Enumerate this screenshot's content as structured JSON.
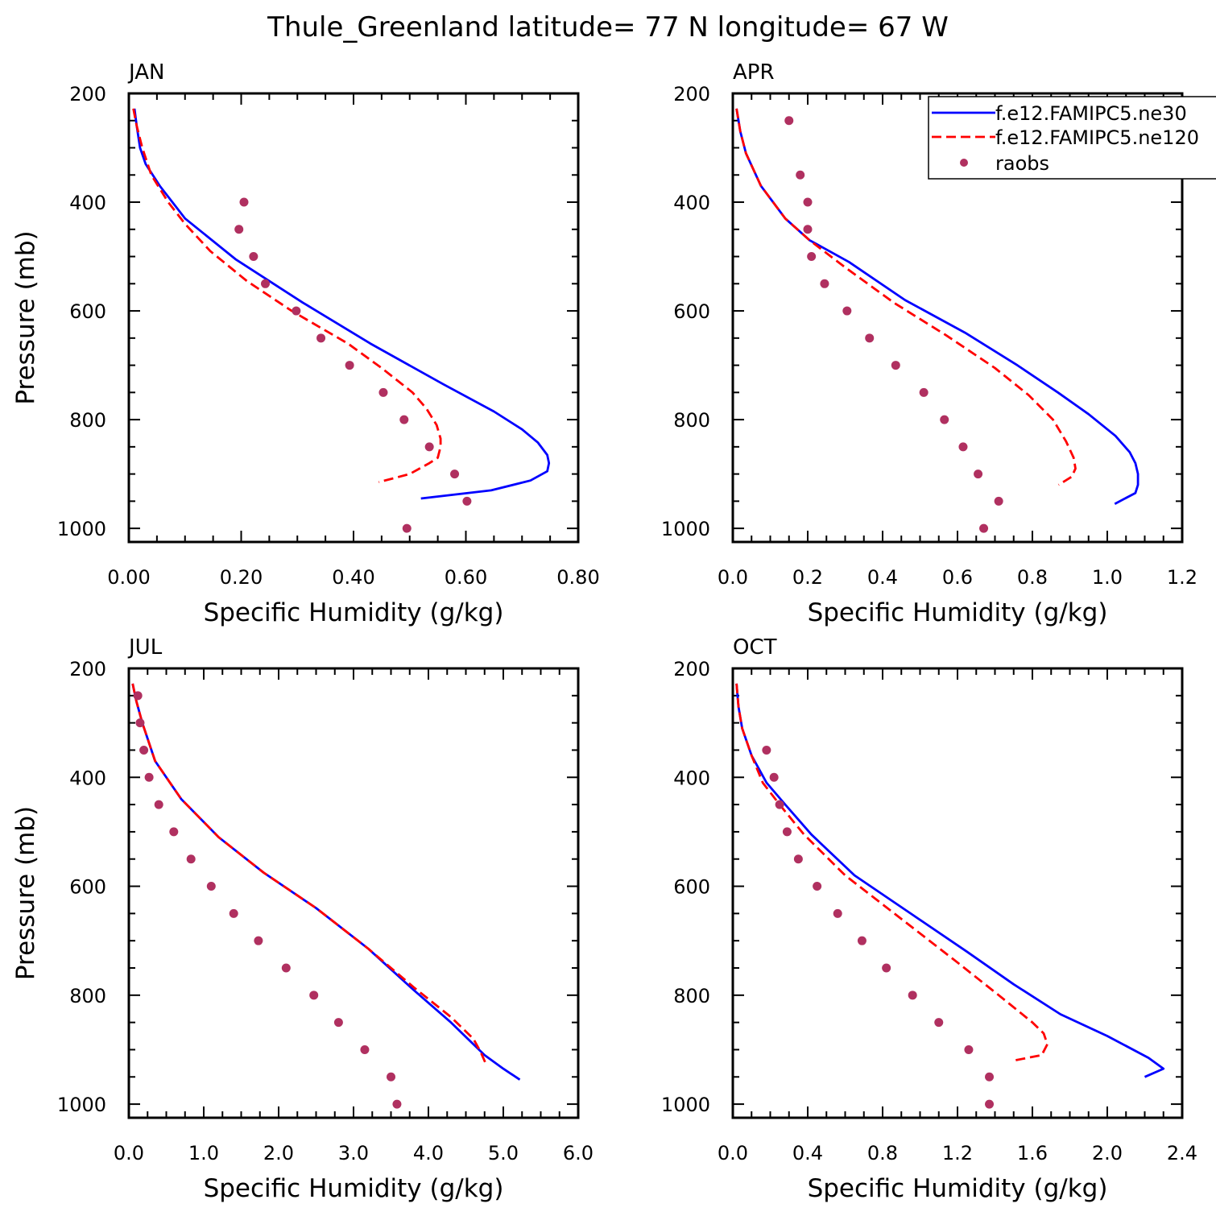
{
  "title": "Thule_Greenland  latitude= 77 N longitude= 67 W",
  "legend": [
    {
      "label": "f.e12.FAMIPC5.ne30",
      "color": "#0000ff",
      "style": "solid"
    },
    {
      "label": "f.e12.FAMIPC5.ne120",
      "color": "#ff0000",
      "style": "dashed"
    },
    {
      "label": "raobs",
      "color": "#b03060",
      "style": "marker"
    }
  ],
  "chart_data": [
    {
      "type": "line",
      "panel": "JAN",
      "xlabel": "Specific Humidity (g/kg)",
      "ylabel": "Pressure (mb)",
      "xlim": [
        0,
        0.8
      ],
      "ylim": [
        200,
        1025
      ],
      "xticks": [
        "0.00",
        "0.20",
        "0.40",
        "0.60",
        "0.80"
      ],
      "yticks": [
        "200",
        "400",
        "600",
        "800",
        "1000"
      ],
      "series": [
        {
          "name": "f.e12.FAMIPC5.ne30",
          "x": [
            0.01,
            0.014,
            0.02,
            0.03,
            0.055,
            0.1,
            0.19,
            0.31,
            0.43,
            0.56,
            0.65,
            0.7,
            0.728,
            0.745,
            0.748,
            0.745,
            0.715,
            0.645,
            0.52
          ],
          "y": [
            228,
            260,
            300,
            330,
            370,
            430,
            505,
            585,
            660,
            735,
            785,
            818,
            842,
            865,
            880,
            895,
            912,
            930,
            945
          ]
        },
        {
          "name": "f.e12.FAMIPC5.ne120",
          "x": [
            0.008,
            0.014,
            0.024,
            0.04,
            0.07,
            0.1,
            0.145,
            0.21,
            0.29,
            0.39,
            0.45,
            0.505,
            0.53,
            0.548,
            0.555,
            0.555,
            0.55,
            0.535,
            0.5,
            0.445
          ],
          "y": [
            228,
            260,
            300,
            350,
            400,
            440,
            490,
            545,
            600,
            660,
            705,
            750,
            780,
            810,
            835,
            850,
            870,
            880,
            900,
            915
          ]
        },
        {
          "name": "raobs",
          "x": [
            0.205,
            0.196,
            0.222,
            0.243,
            0.298,
            0.342,
            0.393,
            0.453,
            0.49,
            0.535,
            0.58,
            0.602,
            0.495
          ],
          "y": [
            400,
            450,
            500,
            550,
            600,
            650,
            700,
            750,
            800,
            850,
            900,
            950,
            1000
          ]
        }
      ]
    },
    {
      "type": "line",
      "panel": "APR",
      "xlabel": "Specific Humidity (g/kg)",
      "ylabel": "",
      "xlim": [
        0,
        1.2
      ],
      "ylim": [
        200,
        1025
      ],
      "xticks": [
        "0.0",
        "0.2",
        "0.4",
        "0.6",
        "0.8",
        "1.0",
        "1.2"
      ],
      "yticks": [
        "200",
        "400",
        "600",
        "800",
        "1000"
      ],
      "series": [
        {
          "name": "f.e12.FAMIPC5.ne30",
          "x": [
            0.01,
            0.02,
            0.035,
            0.075,
            0.14,
            0.205,
            0.31,
            0.46,
            0.62,
            0.76,
            0.868,
            0.95,
            1.022,
            1.06,
            1.075,
            1.082,
            1.082,
            1.075,
            1.02
          ],
          "y": [
            228,
            270,
            310,
            370,
            430,
            470,
            510,
            580,
            640,
            700,
            750,
            790,
            830,
            860,
            880,
            900,
            920,
            935,
            955
          ]
        },
        {
          "name": "f.e12.FAMIPC5.ne120",
          "x": [
            0.01,
            0.02,
            0.035,
            0.075,
            0.14,
            0.205,
            0.3,
            0.43,
            0.57,
            0.7,
            0.79,
            0.855,
            0.89,
            0.91,
            0.915,
            0.905,
            0.87
          ],
          "y": [
            228,
            270,
            310,
            370,
            430,
            470,
            520,
            585,
            645,
            705,
            755,
            800,
            840,
            870,
            890,
            905,
            920
          ]
        },
        {
          "name": "raobs",
          "x": [
            0.15,
            0.18,
            0.2,
            0.2,
            0.21,
            0.245,
            0.305,
            0.365,
            0.435,
            0.51,
            0.565,
            0.615,
            0.655,
            0.71,
            0.67
          ],
          "y": [
            250,
            350,
            400,
            450,
            500,
            550,
            600,
            650,
            700,
            750,
            800,
            850,
            900,
            950,
            1000
          ]
        }
      ]
    },
    {
      "type": "line",
      "panel": "JUL",
      "xlabel": "Specific Humidity (g/kg)",
      "ylabel": "Pressure (mb)",
      "xlim": [
        0,
        6.0
      ],
      "ylim": [
        200,
        1025
      ],
      "xticks": [
        "0.0",
        "1.0",
        "2.0",
        "3.0",
        "4.0",
        "5.0",
        "6.0"
      ],
      "yticks": [
        "200",
        "400",
        "600",
        "800",
        "1000"
      ],
      "series": [
        {
          "name": "f.e12.FAMIPC5.ne30",
          "x": [
            0.05,
            0.1,
            0.18,
            0.35,
            0.7,
            1.2,
            1.8,
            2.5,
            3.2,
            3.8,
            4.3,
            4.75,
            5.0,
            5.22
          ],
          "y": [
            228,
            260,
            300,
            370,
            440,
            510,
            575,
            640,
            715,
            790,
            850,
            910,
            935,
            955
          ]
        },
        {
          "name": "f.e12.FAMIPC5.ne120",
          "x": [
            0.05,
            0.1,
            0.18,
            0.35,
            0.7,
            1.2,
            1.8,
            2.5,
            3.2,
            3.8,
            4.3,
            4.6,
            4.7,
            4.78
          ],
          "y": [
            228,
            260,
            300,
            370,
            440,
            510,
            575,
            640,
            715,
            785,
            840,
            880,
            905,
            930
          ]
        },
        {
          "name": "raobs",
          "x": [
            0.12,
            0.15,
            0.2,
            0.27,
            0.4,
            0.6,
            0.83,
            1.1,
            1.4,
            1.73,
            2.1,
            2.47,
            2.8,
            3.15,
            3.5,
            3.58
          ],
          "y": [
            250,
            300,
            350,
            400,
            450,
            500,
            550,
            600,
            650,
            700,
            750,
            800,
            850,
            900,
            950,
            1000
          ]
        }
      ]
    },
    {
      "type": "line",
      "panel": "OCT",
      "xlabel": "Specific Humidity (g/kg)",
      "ylabel": "",
      "xlim": [
        0,
        2.4
      ],
      "ylim": [
        200,
        1025
      ],
      "xticks": [
        "0.0",
        "0.4",
        "0.8",
        "1.2",
        "1.6",
        "2.0",
        "2.4"
      ],
      "yticks": [
        "200",
        "400",
        "600",
        "800",
        "1000"
      ],
      "series": [
        {
          "name": "f.e12.FAMIPC5.ne30",
          "x": [
            0.02,
            0.03,
            0.05,
            0.1,
            0.18,
            0.28,
            0.42,
            0.65,
            0.95,
            1.25,
            1.5,
            1.75,
            2.0,
            2.22,
            2.3,
            2.2
          ],
          "y": [
            228,
            270,
            310,
            360,
            410,
            450,
            505,
            580,
            650,
            720,
            780,
            835,
            875,
            915,
            935,
            950
          ]
        },
        {
          "name": "f.e12.FAMIPC5.ne120",
          "x": [
            0.02,
            0.03,
            0.05,
            0.1,
            0.16,
            0.25,
            0.38,
            0.6,
            0.9,
            1.2,
            1.42,
            1.6,
            1.66,
            1.68,
            1.65,
            1.5
          ],
          "y": [
            228,
            270,
            310,
            360,
            410,
            450,
            505,
            580,
            660,
            740,
            800,
            850,
            870,
            890,
            910,
            920
          ]
        },
        {
          "name": "raobs",
          "x": [
            0.18,
            0.22,
            0.25,
            0.29,
            0.35,
            0.45,
            0.56,
            0.69,
            0.82,
            0.96,
            1.1,
            1.26,
            1.37,
            1.37
          ],
          "y": [
            350,
            400,
            450,
            500,
            550,
            600,
            650,
            700,
            750,
            800,
            850,
            900,
            950,
            1000
          ]
        }
      ]
    }
  ]
}
